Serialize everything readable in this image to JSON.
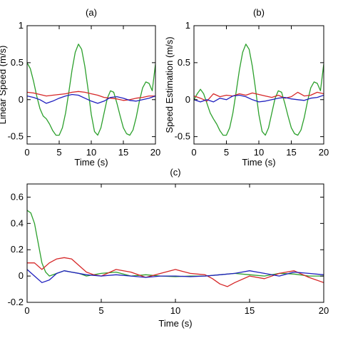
{
  "chart_data": [
    {
      "type": "line",
      "title": "(a)",
      "xlabel": "Time (s)",
      "ylabel": "Linear Speed (m/s)",
      "xlim": [
        0,
        20
      ],
      "ylim": [
        -0.6,
        1.0
      ],
      "xticks": [
        0,
        5,
        10,
        15,
        20
      ],
      "yticks": [
        -0.5,
        0,
        0.5,
        1
      ],
      "ytick_labels": [
        "-0.5",
        "0",
        "0.5",
        "1"
      ],
      "grid": false,
      "series": [
        {
          "color": "#2ca02c",
          "x": [
            0,
            0.5,
            1,
            1.5,
            2,
            2.5,
            3,
            3.5,
            4,
            4.5,
            5,
            5.5,
            6,
            6.5,
            7,
            7.5,
            8,
            8.5,
            9,
            9.5,
            10,
            10.5,
            11,
            11.5,
            12,
            12.5,
            13,
            13.5,
            14,
            14.5,
            15,
            15.5,
            16,
            16.5,
            17,
            17.5,
            18,
            18.5,
            19,
            19.5,
            20
          ],
          "y": [
            0.5,
            0.42,
            0.25,
            0.05,
            -0.12,
            -0.22,
            -0.26,
            -0.33,
            -0.42,
            -0.48,
            -0.48,
            -0.38,
            -0.18,
            0.1,
            0.4,
            0.64,
            0.75,
            0.68,
            0.45,
            0.14,
            -0.2,
            -0.43,
            -0.48,
            -0.38,
            -0.18,
            0.02,
            0.12,
            0.1,
            -0.05,
            -0.22,
            -0.38,
            -0.46,
            -0.48,
            -0.41,
            -0.24,
            -0.02,
            0.16,
            0.24,
            0.22,
            0.12,
            0.48
          ]
        },
        {
          "color": "#d62728",
          "x": [
            0,
            1,
            2,
            3,
            4,
            5,
            6,
            7,
            8,
            9,
            10,
            11,
            12,
            13,
            14,
            15,
            16,
            17,
            18,
            19,
            20
          ],
          "y": [
            0.1,
            0.09,
            0.07,
            0.05,
            0.06,
            0.07,
            0.08,
            0.1,
            0.11,
            0.1,
            0.08,
            0.06,
            0.03,
            0.02,
            0.01,
            -0.01,
            0.0,
            0.02,
            0.03,
            0.05,
            0.05
          ]
        },
        {
          "color": "#1f1fbf",
          "x": [
            0,
            1,
            2,
            3,
            4,
            5,
            6,
            7,
            8,
            9,
            10,
            11,
            12,
            13,
            14,
            15,
            16,
            17,
            18,
            19,
            20
          ],
          "y": [
            0.05,
            0.03,
            0.0,
            -0.05,
            -0.02,
            0.02,
            0.05,
            0.07,
            0.06,
            0.02,
            -0.02,
            -0.05,
            -0.02,
            0.03,
            0.04,
            0.02,
            -0.01,
            -0.02,
            0.0,
            0.02,
            0.05
          ]
        }
      ]
    },
    {
      "type": "line",
      "title": "(b)",
      "xlabel": "Time (s)",
      "ylabel": "Speed Estimation (m/s)",
      "xlim": [
        0,
        20
      ],
      "ylim": [
        -0.6,
        1.0
      ],
      "xticks": [
        0,
        5,
        10,
        15,
        20
      ],
      "yticks": [
        -0.5,
        0,
        0.5,
        1
      ],
      "ytick_labels": [
        "-0.5",
        "0",
        "0.5",
        "1"
      ],
      "grid": false,
      "series": [
        {
          "color": "#2ca02c",
          "x": [
            0,
            0.5,
            1,
            1.5,
            2,
            2.5,
            3,
            3.5,
            4,
            4.5,
            5,
            5.5,
            6,
            6.5,
            7,
            7.5,
            8,
            8.5,
            9,
            9.5,
            10,
            10.5,
            11,
            11.5,
            12,
            12.5,
            13,
            13.5,
            14,
            14.5,
            15,
            15.5,
            16,
            16.5,
            17,
            17.5,
            18,
            18.5,
            19,
            19.5,
            20
          ],
          "y": [
            0.0,
            0.08,
            0.14,
            0.08,
            -0.05,
            -0.18,
            -0.26,
            -0.33,
            -0.42,
            -0.48,
            -0.48,
            -0.38,
            -0.18,
            0.1,
            0.4,
            0.64,
            0.75,
            0.68,
            0.45,
            0.14,
            -0.2,
            -0.43,
            -0.48,
            -0.38,
            -0.18,
            0.02,
            0.12,
            0.1,
            -0.05,
            -0.22,
            -0.38,
            -0.46,
            -0.48,
            -0.41,
            -0.24,
            -0.02,
            0.16,
            0.24,
            0.22,
            0.12,
            0.48
          ]
        },
        {
          "color": "#d62728",
          "x": [
            0,
            1,
            2,
            3,
            4,
            5,
            6,
            7,
            8,
            9,
            10,
            11,
            12,
            13,
            14,
            15,
            16,
            17,
            18,
            19,
            20
          ],
          "y": [
            0.05,
            0.02,
            -0.02,
            0.08,
            0.04,
            0.06,
            0.05,
            0.08,
            0.06,
            0.09,
            0.07,
            0.05,
            0.03,
            0.06,
            0.02,
            0.04,
            0.1,
            0.05,
            0.06,
            0.1,
            0.08
          ]
        },
        {
          "color": "#1f1fbf",
          "x": [
            0,
            1,
            2,
            3,
            4,
            5,
            6,
            7,
            8,
            9,
            10,
            11,
            12,
            13,
            14,
            15,
            16,
            17,
            18,
            19,
            20
          ],
          "y": [
            0.0,
            -0.03,
            0.0,
            -0.03,
            0.02,
            0.0,
            0.05,
            0.06,
            0.04,
            0.0,
            -0.03,
            -0.02,
            0.0,
            0.02,
            0.03,
            0.01,
            0.0,
            -0.01,
            0.02,
            0.03,
            0.06
          ]
        }
      ]
    },
    {
      "type": "line",
      "title": "(c)",
      "xlabel": "Time (s)",
      "ylabel": "",
      "xlim": [
        0,
        20
      ],
      "ylim": [
        -0.2,
        0.7
      ],
      "xticks": [
        0,
        5,
        10,
        15,
        20
      ],
      "yticks": [
        -0.2,
        0,
        0.2,
        0.4,
        0.6
      ],
      "ytick_labels": [
        "-0.2",
        "0",
        "0.2",
        "0.4",
        "0.6"
      ],
      "grid": false,
      "series": [
        {
          "color": "#2ca02c",
          "x": [
            0,
            0.25,
            0.5,
            0.75,
            1,
            1.25,
            1.5,
            2,
            2.5,
            3,
            3.5,
            4,
            5,
            6,
            7,
            8,
            9,
            10,
            11,
            12,
            13,
            14,
            15,
            16,
            17,
            18,
            19,
            20
          ],
          "y": [
            0.5,
            0.48,
            0.4,
            0.25,
            0.1,
            0.03,
            0.0,
            0.02,
            0.04,
            0.03,
            0.02,
            0.0,
            0.02,
            0.03,
            0.0,
            0.01,
            0.0,
            -0.005,
            0.0,
            0.0,
            0.01,
            0.02,
            0.01,
            0.0,
            0.02,
            0.015,
            0.0,
            0.0
          ]
        },
        {
          "color": "#d62728",
          "x": [
            0,
            0.5,
            1,
            1.5,
            2,
            2.5,
            3,
            3.5,
            4,
            4.5,
            5,
            6,
            7,
            8,
            9,
            10,
            11,
            12,
            12.5,
            13,
            13.5,
            14,
            15,
            16,
            17,
            18,
            19,
            20
          ],
          "y": [
            0.1,
            0.1,
            0.05,
            0.1,
            0.13,
            0.14,
            0.13,
            0.08,
            0.03,
            0.01,
            0.0,
            0.05,
            0.03,
            -0.01,
            0.02,
            0.05,
            0.02,
            0.01,
            -0.02,
            -0.06,
            -0.08,
            -0.05,
            0.0,
            -0.02,
            0.02,
            0.04,
            -0.01,
            -0.05
          ]
        },
        {
          "color": "#1f1fbf",
          "x": [
            0,
            0.5,
            1,
            1.5,
            2,
            2.5,
            3,
            4,
            5,
            6,
            7,
            8,
            9,
            10,
            11,
            12,
            13,
            14,
            15,
            16,
            17,
            18,
            19,
            20
          ],
          "y": [
            0.05,
            0.0,
            -0.05,
            -0.03,
            0.02,
            0.04,
            0.03,
            0.01,
            0.0,
            0.01,
            0.0,
            -0.01,
            0.0,
            0.0,
            -0.005,
            0.0,
            0.01,
            0.02,
            0.04,
            0.02,
            0.0,
            0.03,
            0.02,
            0.01
          ]
        }
      ]
    }
  ]
}
